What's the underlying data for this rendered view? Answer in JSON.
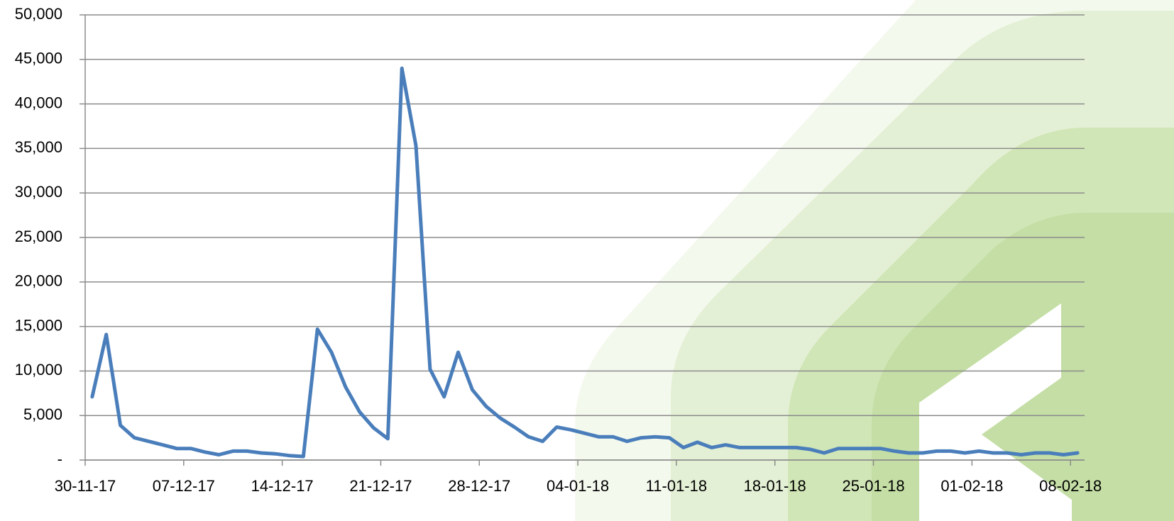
{
  "chart_data": {
    "type": "line",
    "categories": [
      "30-11-17",
      null,
      null,
      null,
      null,
      null,
      null,
      "07-12-17",
      null,
      null,
      null,
      null,
      null,
      null,
      "14-12-17",
      null,
      null,
      null,
      null,
      null,
      null,
      "21-12-17",
      null,
      null,
      null,
      null,
      null,
      null,
      "28-12-17",
      null,
      null,
      null,
      null,
      null,
      null,
      "04-01-18",
      null,
      null,
      null,
      null,
      null,
      null,
      "11-01-18",
      null,
      null,
      null,
      null,
      null,
      null,
      "18-01-18",
      null,
      null,
      null,
      null,
      null,
      null,
      "25-01-18",
      null,
      null,
      null,
      null,
      null,
      null,
      "01-02-18",
      null,
      null,
      null,
      null,
      null,
      null,
      "08-02-18"
    ],
    "values": [
      7100,
      14100,
      3900,
      2500,
      2100,
      1700,
      1300,
      1300,
      900,
      600,
      1000,
      1000,
      800,
      700,
      500,
      400,
      14700,
      12100,
      8200,
      5400,
      3600,
      2400,
      44000,
      35300,
      10200,
      7100,
      12100,
      7900,
      6000,
      4700,
      3700,
      2600,
      2100,
      3700,
      3400,
      3000,
      2600,
      2600,
      2100,
      2500,
      2600,
      2500,
      1400,
      2000,
      1400,
      1700,
      1400,
      1400,
      1400,
      1400,
      1400,
      1200,
      800,
      1300,
      1300,
      1300,
      1300,
      1000,
      800,
      800,
      1000,
      1000,
      800,
      1000,
      800,
      800,
      600,
      800,
      800,
      600,
      800
    ],
    "color": "#4a7ebb",
    "ylim": [
      0,
      50000
    ],
    "yticks": [
      {
        "value": 0,
        "label": "-"
      },
      {
        "value": 5000,
        "label": "5,000"
      },
      {
        "value": 10000,
        "label": "10,000"
      },
      {
        "value": 15000,
        "label": "15,000"
      },
      {
        "value": 20000,
        "label": "20,000"
      },
      {
        "value": 25000,
        "label": "25,000"
      },
      {
        "value": 30000,
        "label": "30,000"
      },
      {
        "value": 35000,
        "label": "35,000"
      },
      {
        "value": 40000,
        "label": "40,000"
      },
      {
        "value": 45000,
        "label": "45,000"
      },
      {
        "value": 50000,
        "label": "50,000"
      }
    ],
    "grid": true
  }
}
